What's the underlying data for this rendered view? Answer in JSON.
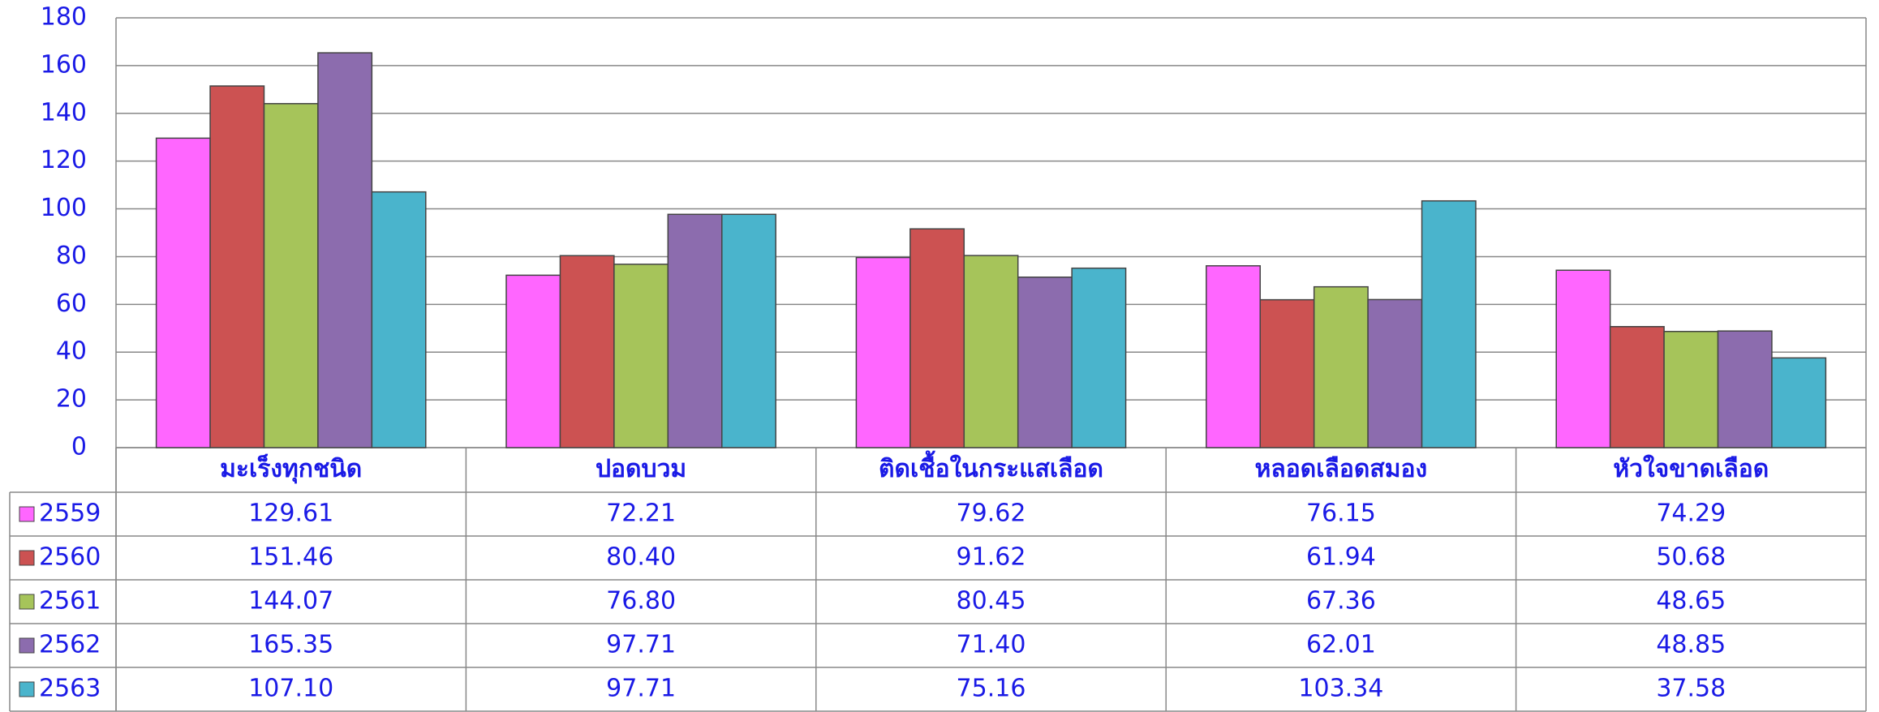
{
  "chart_data": {
    "type": "bar",
    "categories": [
      "มะเร็งทุกชนิด",
      "ปอดบวม",
      "ติดเชื้อในกระแสเลือด",
      "หลอดเลือดสมอง",
      "หัวใจขาดเลือด"
    ],
    "series": [
      {
        "name": "2559",
        "color": "#ff66ff",
        "values": [
          129.61,
          72.21,
          79.62,
          76.15,
          74.29
        ],
        "value_labels": [
          "129.61",
          "72.21",
          "79.62",
          "76.15",
          "74.29"
        ]
      },
      {
        "name": "2560",
        "color": "#cc5252",
        "values": [
          151.46,
          80.4,
          91.62,
          61.94,
          50.68
        ],
        "value_labels": [
          "151.46",
          "80.40",
          "91.62",
          "61.94",
          "50.68"
        ]
      },
      {
        "name": "2561",
        "color": "#a6c45a",
        "values": [
          144.07,
          76.8,
          80.45,
          67.36,
          48.65
        ],
        "value_labels": [
          "144.07",
          "76.80",
          "80.45",
          "67.36",
          "48.65"
        ]
      },
      {
        "name": "2562",
        "color": "#8c6cae",
        "values": [
          165.35,
          97.71,
          71.4,
          62.01,
          48.85
        ],
        "value_labels": [
          "165.35",
          "97.71",
          "71.40",
          "62.01",
          "48.85"
        ]
      },
      {
        "name": "2563",
        "color": "#4ab4cc",
        "values": [
          107.1,
          97.71,
          75.16,
          103.34,
          37.58
        ],
        "value_labels": [
          "107.10",
          "97.71",
          "75.16",
          "103.34",
          "37.58"
        ]
      }
    ],
    "ylim": [
      0,
      180
    ],
    "yticks": [
      0,
      20,
      40,
      60,
      80,
      100,
      120,
      140,
      160,
      180
    ],
    "grid": true
  }
}
